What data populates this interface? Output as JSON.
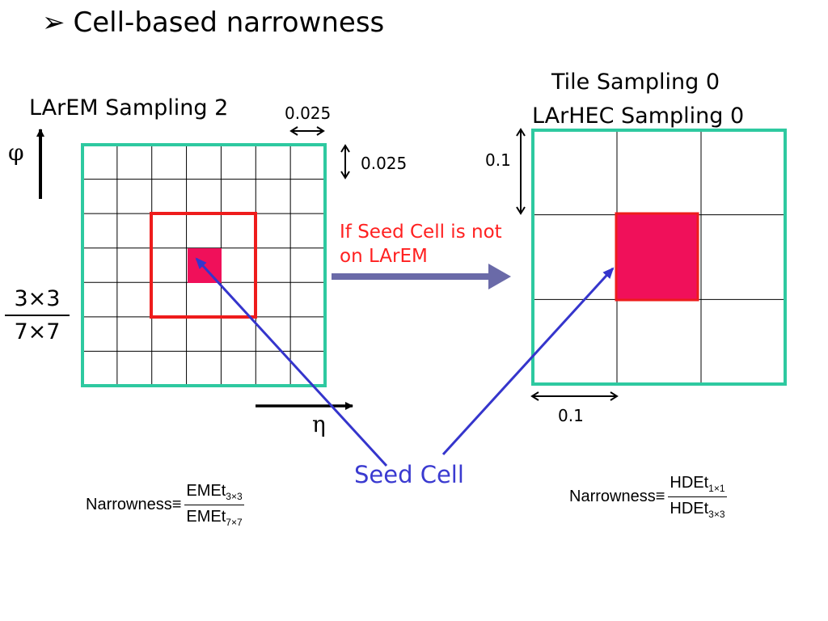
{
  "title": {
    "bullet": "➢",
    "text": "Cell-based narrowness"
  },
  "left_panel": {
    "label": "LArEM Sampling 2",
    "eta_width": "0.025",
    "phi_height": "0.025",
    "phi_symbol": "φ",
    "eta_symbol": "η",
    "fraction_top": "3×3",
    "fraction_bottom": "7×7",
    "grid_size": 7
  },
  "right_panel": {
    "label_line1": "Tile Sampling 0",
    "label_line2": "LArHEC Sampling 0",
    "phi_height": "0.1",
    "eta_width": "0.1",
    "grid_size": 3
  },
  "transition": {
    "text": "If Seed Cell is not on LArEM"
  },
  "seed_label": "Seed Cell",
  "formula_left": {
    "lhs": "Narrowness≡",
    "num": "EMEt",
    "num_sub": "3×3",
    "den": "EMEt",
    "den_sub": "7×7"
  },
  "formula_right": {
    "lhs": "Narrowness≡",
    "num": "HDEt",
    "num_sub": "1×1",
    "den": "HDEt",
    "den_sub": "3×3"
  },
  "colors": {
    "frame": "#2ec9a0",
    "window": "#ee1c1c",
    "seed": "#f0105a",
    "arrow_blue": "#3535cc",
    "arrow_gray": "#6a6aa8"
  }
}
